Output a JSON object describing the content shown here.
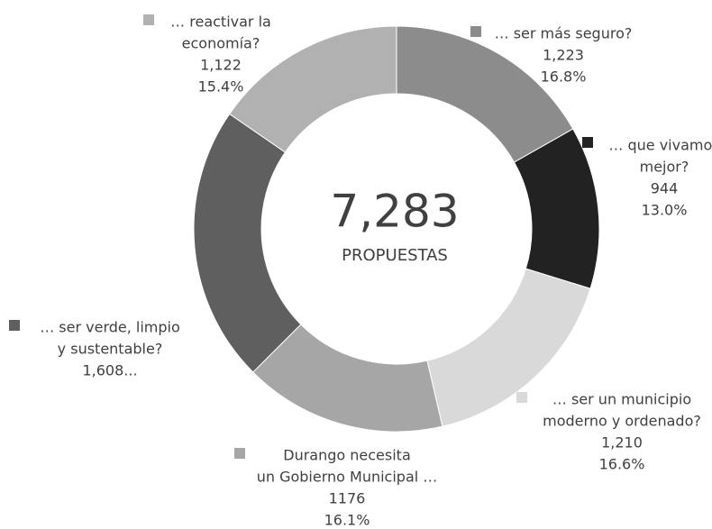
{
  "chart_data": {
    "type": "donut",
    "center": {
      "value": 7283,
      "label": "7,283",
      "caption": "PROPUESTAS"
    },
    "categories": [
      [
        "… ser más seguro?"
      ],
      [
        "… que vivamos",
        "mejor?"
      ],
      [
        "… ser un municipio",
        "moderno y ordenado?"
      ],
      [
        "Durango necesita",
        "un Gobierno Municipal …"
      ],
      [
        "… ser verde, limpio",
        "y sustentable?"
      ],
      [
        "… reactivar la",
        "economía?"
      ]
    ],
    "values": [
      1223,
      944,
      1210,
      1176,
      1608,
      1122
    ],
    "value_labels": [
      "1,223",
      "944",
      "1,210",
      "1176",
      "1,608...",
      "1,122"
    ],
    "percent_labels": [
      "16.8%",
      "13.0%",
      "16.6%",
      "16.1%",
      null,
      "15.4%"
    ],
    "colors": [
      "#8c8c8c",
      "#222222",
      "#d9d9d9",
      "#a6a6a6",
      "#5f5f5f",
      "#b1b1b1"
    ]
  }
}
